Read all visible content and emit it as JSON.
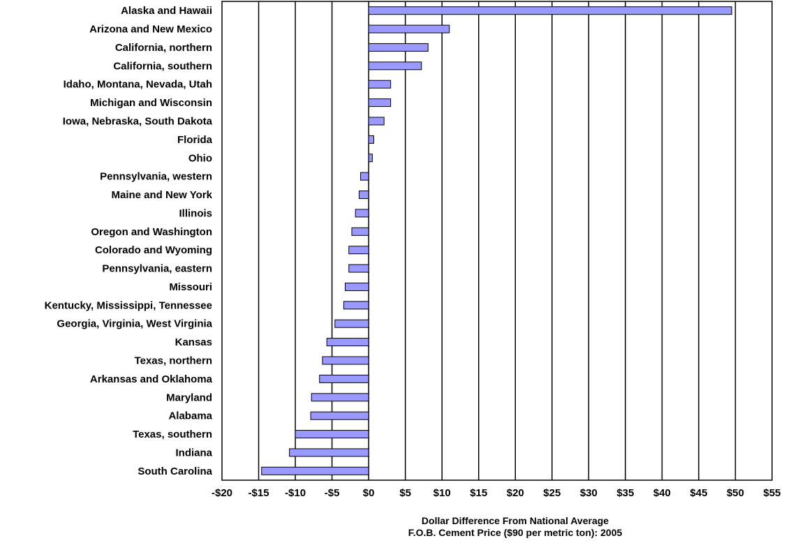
{
  "chart_data": {
    "type": "bar",
    "orientation": "horizontal",
    "categories": [
      "Alaska and Hawaii",
      "Arizona and New Mexico",
      "California, northern",
      "California, southern",
      "Idaho, Montana, Nevada, Utah",
      "Michigan and Wisconsin",
      "Iowa, Nebraska, South Dakota",
      "Florida",
      "Ohio",
      "Pennsylvania, western",
      "Maine and New York",
      "Illinois",
      "Oregon and Washington",
      "Colorado and Wyoming",
      "Pennsylvania, eastern",
      "Missouri",
      "Kentucky, Mississippi, Tennessee",
      "Georgia, Virginia, West Virginia",
      "Kansas",
      "Texas, northern",
      "Arkansas and Oklahoma",
      "Maryland",
      "Alabama",
      "Texas, southern",
      "Indiana",
      "South Carolina"
    ],
    "values": [
      49.5,
      11,
      8.1,
      7.2,
      3,
      3,
      2.1,
      0.7,
      0.5,
      -1.1,
      -1.3,
      -1.8,
      -2.3,
      -2.7,
      -2.7,
      -3.2,
      -3.4,
      -4.6,
      -5.7,
      -6.3,
      -6.7,
      -7.8,
      -7.9,
      -10,
      -10.8,
      -14.6
    ],
    "xlim": [
      -20,
      55
    ],
    "x_ticks": [
      -20,
      -15,
      -10,
      -5,
      0,
      5,
      10,
      15,
      20,
      25,
      30,
      35,
      40,
      45,
      50,
      55
    ],
    "x_tick_labels": [
      "-$20",
      "-$15",
      "-$10",
      "-$5",
      "$0",
      "$5",
      "$10",
      "$15",
      "$20",
      "$25",
      "$30",
      "$35",
      "$40",
      "$45",
      "$50",
      "$55"
    ],
    "xlabel_line1": "Dollar Difference From National Average",
    "xlabel_line2": "F.O.B. Cement Price ($90 per metric ton):  2005",
    "grid": "vertical",
    "bar_color": "#9999ff",
    "bar_edge_color": "#000000"
  }
}
